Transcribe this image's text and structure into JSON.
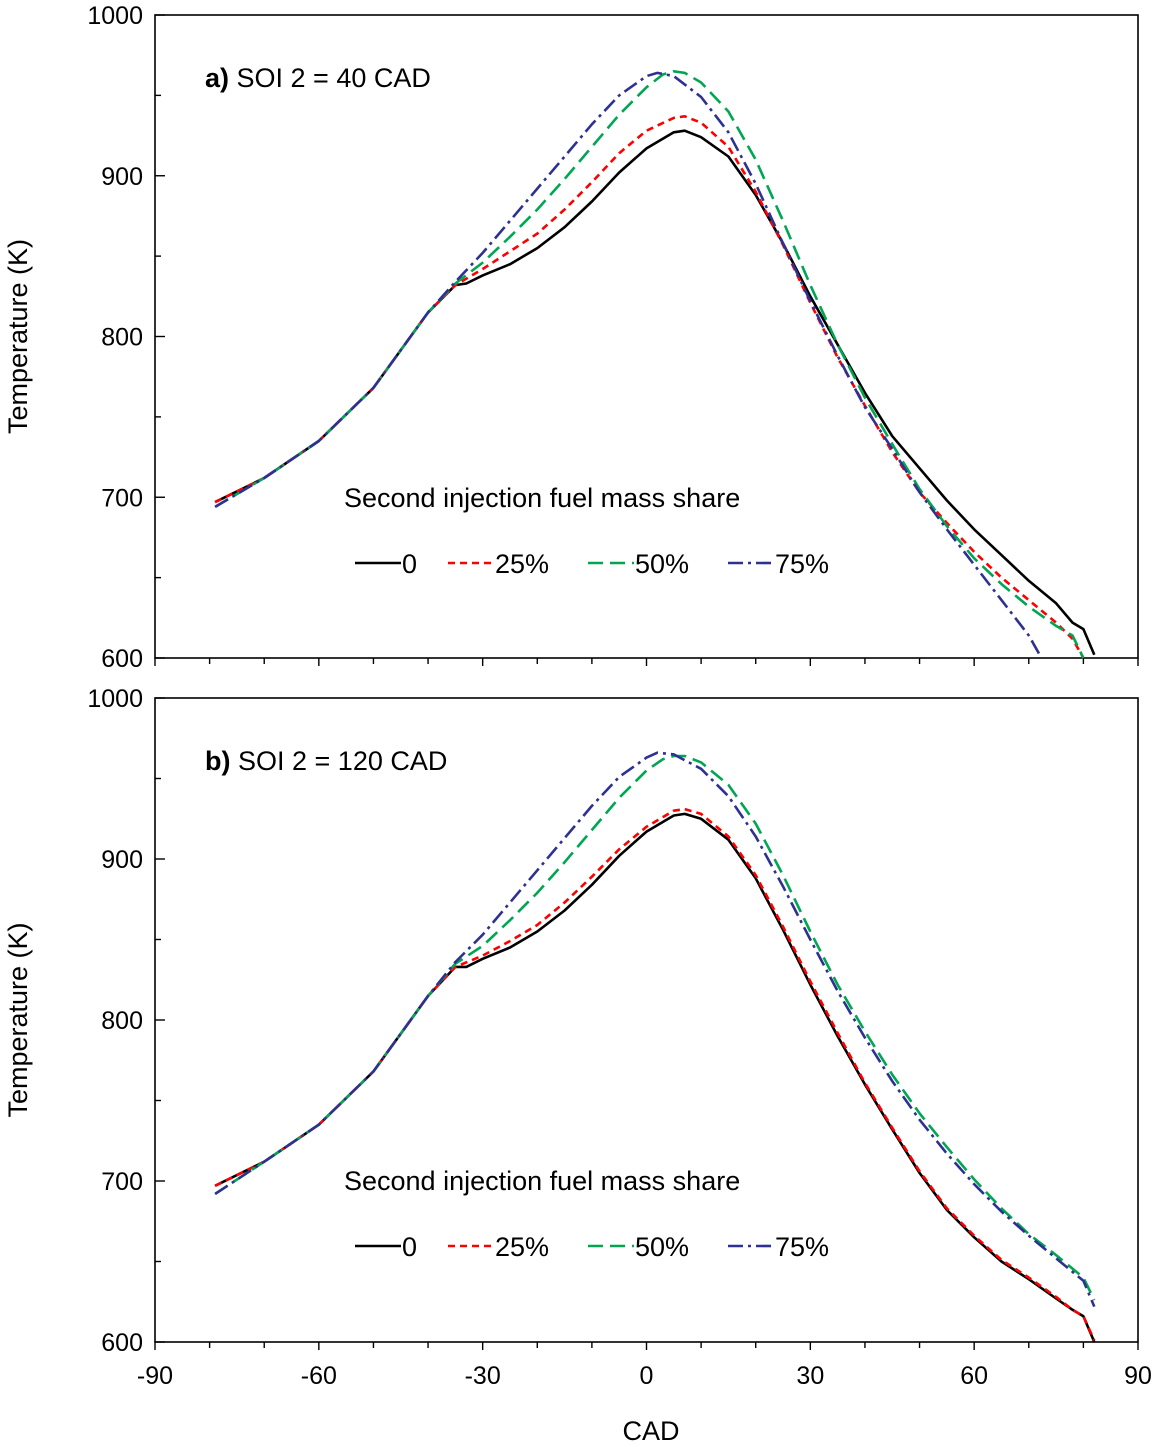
{
  "xlabel": "CAD",
  "legend_title": "Second injection fuel mass share",
  "series_style": [
    {
      "name": "0",
      "color": "#000000",
      "dash": "solid"
    },
    {
      "name": "25%",
      "color": "#ff0000",
      "dash": "short-dash"
    },
    {
      "name": "50%",
      "color": "#00a651",
      "dash": "long-dash"
    },
    {
      "name": "75%",
      "color": "#2e3192",
      "dash": "dash-dot"
    }
  ],
  "chart_data": [
    {
      "type": "line",
      "panel_label": "a)",
      "title": "SOI 2 = 40 CAD",
      "xlabel": "CAD",
      "ylabel": "Temperature (K)",
      "xlim": [
        -90,
        90
      ],
      "ylim": [
        600,
        1000
      ],
      "xticks": [
        -90,
        -60,
        -30,
        0,
        30,
        60,
        90
      ],
      "yticks": [
        600,
        700,
        800,
        900,
        1000
      ],
      "grid": false,
      "legend": "center-right",
      "series": [
        {
          "name": "0",
          "x": [
            -79,
            -70,
            -60,
            -50,
            -40,
            -35,
            -33,
            -30,
            -25,
            -20,
            -15,
            -10,
            -5,
            0,
            5,
            7,
            10,
            15,
            20,
            25,
            30,
            35,
            40,
            45,
            50,
            55,
            60,
            65,
            70,
            75,
            78,
            80,
            82
          ],
          "y": [
            697,
            712,
            735,
            768,
            815,
            832,
            833,
            838,
            845,
            855,
            868,
            884,
            902,
            917,
            927,
            928,
            924,
            912,
            888,
            858,
            825,
            795,
            765,
            738,
            718,
            698,
            680,
            664,
            648,
            634,
            622,
            618,
            602
          ]
        },
        {
          "name": "25%",
          "x": [
            -79,
            -70,
            -60,
            -50,
            -40,
            -35,
            -30,
            -25,
            -20,
            -15,
            -10,
            -5,
            0,
            5,
            7,
            10,
            15,
            20,
            25,
            30,
            35,
            40,
            45,
            50,
            55,
            60,
            65,
            70,
            75,
            78,
            80
          ],
          "y": [
            697,
            712,
            735,
            768,
            815,
            832,
            842,
            853,
            864,
            879,
            896,
            914,
            928,
            936,
            937,
            933,
            918,
            890,
            857,
            821,
            787,
            757,
            728,
            703,
            684,
            666,
            650,
            636,
            622,
            612,
            600
          ]
        },
        {
          "name": "50%",
          "x": [
            -79,
            -70,
            -60,
            -50,
            -40,
            -35,
            -30,
            -25,
            -20,
            -15,
            -10,
            -5,
            0,
            3,
            5,
            7,
            10,
            15,
            20,
            25,
            30,
            35,
            40,
            45,
            50,
            55,
            60,
            65,
            70,
            75,
            78,
            80
          ],
          "y": [
            694,
            712,
            735,
            768,
            815,
            833,
            846,
            862,
            879,
            898,
            918,
            938,
            955,
            963,
            965,
            964,
            958,
            940,
            910,
            872,
            832,
            795,
            762,
            733,
            705,
            682,
            662,
            646,
            632,
            620,
            614,
            600
          ]
        },
        {
          "name": "75%",
          "x": [
            -79,
            -70,
            -60,
            -50,
            -40,
            -35,
            -30,
            -25,
            -20,
            -15,
            -10,
            -5,
            0,
            2,
            5,
            10,
            15,
            20,
            25,
            30,
            35,
            40,
            45,
            50,
            55,
            60,
            65,
            70,
            72
          ],
          "y": [
            694,
            712,
            735,
            768,
            815,
            834,
            852,
            872,
            892,
            912,
            932,
            950,
            962,
            964,
            962,
            949,
            927,
            895,
            858,
            822,
            788,
            756,
            730,
            703,
            680,
            658,
            636,
            614,
            602
          ]
        }
      ]
    },
    {
      "type": "line",
      "panel_label": "b)",
      "title": "SOI 2 = 120 CAD",
      "xlabel": "CAD",
      "ylabel": "Temperature (K)",
      "xlim": [
        -90,
        90
      ],
      "ylim": [
        600,
        1000
      ],
      "xticks": [
        -90,
        -60,
        -30,
        0,
        30,
        60,
        90
      ],
      "yticks": [
        600,
        700,
        800,
        900,
        1000
      ],
      "grid": false,
      "legend": "center-right",
      "series": [
        {
          "name": "0",
          "x": [
            -79,
            -70,
            -60,
            -50,
            -40,
            -35,
            -33,
            -30,
            -25,
            -20,
            -15,
            -10,
            -5,
            0,
            5,
            7,
            10,
            15,
            20,
            25,
            30,
            35,
            40,
            45,
            50,
            55,
            60,
            65,
            70,
            75,
            78,
            80,
            82
          ],
          "y": [
            697,
            712,
            735,
            768,
            815,
            833,
            833,
            838,
            845,
            855,
            868,
            884,
            902,
            917,
            927,
            928,
            925,
            912,
            888,
            856,
            822,
            790,
            760,
            732,
            705,
            682,
            665,
            650,
            639,
            627,
            620,
            616,
            600
          ]
        },
        {
          "name": "25%",
          "x": [
            -79,
            -70,
            -60,
            -50,
            -40,
            -35,
            -30,
            -25,
            -20,
            -15,
            -10,
            -5,
            0,
            5,
            7,
            10,
            15,
            20,
            25,
            30,
            35,
            40,
            45,
            50,
            55,
            60,
            65,
            70,
            75,
            78,
            80,
            82
          ],
          "y": [
            697,
            712,
            735,
            768,
            815,
            833,
            840,
            849,
            859,
            873,
            889,
            906,
            920,
            930,
            931,
            928,
            914,
            890,
            858,
            824,
            792,
            761,
            733,
            706,
            683,
            666,
            651,
            640,
            628,
            620,
            616,
            601
          ]
        },
        {
          "name": "50%",
          "x": [
            -79,
            -70,
            -60,
            -50,
            -40,
            -35,
            -30,
            -25,
            -20,
            -15,
            -10,
            -5,
            0,
            3,
            5,
            7,
            10,
            15,
            20,
            25,
            30,
            35,
            40,
            45,
            50,
            55,
            60,
            65,
            70,
            75,
            80,
            82
          ],
          "y": [
            692,
            712,
            735,
            768,
            815,
            835,
            846,
            862,
            879,
            898,
            918,
            938,
            955,
            962,
            964,
            964,
            960,
            946,
            922,
            890,
            855,
            822,
            793,
            766,
            742,
            721,
            701,
            683,
            667,
            654,
            640,
            626
          ]
        },
        {
          "name": "75%",
          "x": [
            -79,
            -70,
            -60,
            -50,
            -40,
            -35,
            -30,
            -25,
            -20,
            -15,
            -10,
            -5,
            0,
            2,
            5,
            10,
            15,
            20,
            25,
            30,
            35,
            40,
            45,
            50,
            55,
            60,
            65,
            70,
            75,
            80,
            82
          ],
          "y": [
            692,
            712,
            735,
            768,
            815,
            836,
            853,
            873,
            893,
            913,
            933,
            951,
            963,
            966,
            965,
            956,
            939,
            914,
            883,
            850,
            818,
            789,
            762,
            738,
            717,
            698,
            681,
            666,
            652,
            638,
            622
          ]
        }
      ]
    }
  ]
}
